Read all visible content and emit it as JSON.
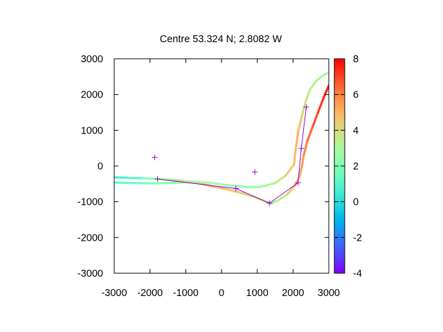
{
  "chart_data": {
    "type": "scatter",
    "title": "Centre 53.324 N; 2.8082  W",
    "xlabel": "",
    "ylabel": "",
    "xlim": [
      -3000,
      3000
    ],
    "ylim": [
      -3000,
      3000
    ],
    "x_ticks": [
      -3000,
      -2000,
      -1000,
      0,
      1000,
      2000,
      3000
    ],
    "y_ticks": [
      -3000,
      -2000,
      -1000,
      0,
      1000,
      2000,
      3000
    ],
    "x_tick_labels": [
      "-3000",
      "-2000",
      "-1000",
      "0",
      "1000",
      "2000",
      "3000"
    ],
    "y_tick_labels": [
      "-3000",
      "-2000",
      "-1000",
      "0",
      "1000",
      "2000",
      "3000"
    ],
    "grid": false,
    "legend": "none",
    "colorbar": {
      "range": [
        -4,
        8
      ],
      "ticks": [
        -4,
        -2,
        0,
        2,
        4,
        6,
        8
      ],
      "tick_labels": [
        "-4",
        "-2",
        "0",
        "2",
        "4",
        "6",
        "8"
      ],
      "palette": "rainbow"
    },
    "series": [
      {
        "kind": "track",
        "color_by_value": true,
        "points": [
          {
            "x": -3000,
            "y": -320,
            "v": 0.5
          },
          {
            "x": -2600,
            "y": -330,
            "v": 0.8
          },
          {
            "x": -2200,
            "y": -345,
            "v": 1.5
          },
          {
            "x": -1800,
            "y": -360,
            "v": 2.5
          },
          {
            "x": -1200,
            "y": -400,
            "v": 3.5
          },
          {
            "x": -700,
            "y": -460,
            "v": 4.8
          },
          {
            "x": -300,
            "y": -560,
            "v": 5.0
          },
          {
            "x": 100,
            "y": -640,
            "v": 4.8
          },
          {
            "x": 500,
            "y": -740,
            "v": 4.5
          },
          {
            "x": 900,
            "y": -860,
            "v": 4.2
          },
          {
            "x": 1200,
            "y": -980,
            "v": 3.8
          },
          {
            "x": 1380,
            "y": -1050,
            "v": 3.0
          },
          {
            "x": 1600,
            "y": -950,
            "v": 3.0
          },
          {
            "x": 1850,
            "y": -780,
            "v": 4.0
          },
          {
            "x": 2050,
            "y": -550,
            "v": 5.0
          },
          {
            "x": 2180,
            "y": -300,
            "v": 5.2
          },
          {
            "x": 2250,
            "y": 0,
            "v": 5.3
          },
          {
            "x": 2300,
            "y": 300,
            "v": 5.6
          },
          {
            "x": 2400,
            "y": 700,
            "v": 6.2
          },
          {
            "x": 2550,
            "y": 1100,
            "v": 6.6
          },
          {
            "x": 2700,
            "y": 1500,
            "v": 7.0
          },
          {
            "x": 2850,
            "y": 1900,
            "v": 7.3
          },
          {
            "x": 3000,
            "y": 2250,
            "v": 7.6
          }
        ]
      },
      {
        "kind": "track",
        "color_by_value": true,
        "points": [
          {
            "x": -3000,
            "y": -460,
            "v": 1.2
          },
          {
            "x": -2600,
            "y": -475,
            "v": 1.4
          },
          {
            "x": -2200,
            "y": -480,
            "v": 1.6
          },
          {
            "x": -1800,
            "y": -485,
            "v": 1.8
          },
          {
            "x": -1300,
            "y": -470,
            "v": 2.5
          },
          {
            "x": -800,
            "y": -440,
            "v": 2.8
          },
          {
            "x": -300,
            "y": -470,
            "v": 2.8
          },
          {
            "x": 200,
            "y": -540,
            "v": 2.6
          },
          {
            "x": 700,
            "y": -590,
            "v": 2.3
          },
          {
            "x": 1100,
            "y": -580,
            "v": 2.5
          },
          {
            "x": 1500,
            "y": -480,
            "v": 3.2
          },
          {
            "x": 1800,
            "y": -260,
            "v": 4.2
          },
          {
            "x": 2030,
            "y": 50,
            "v": 4.6
          },
          {
            "x": 2080,
            "y": 500,
            "v": 5.0
          },
          {
            "x": 2150,
            "y": 1000,
            "v": 5.0
          },
          {
            "x": 2250,
            "y": 1400,
            "v": 4.5
          },
          {
            "x": 2350,
            "y": 1800,
            "v": 3.8
          },
          {
            "x": 2480,
            "y": 2150,
            "v": 3.5
          },
          {
            "x": 2650,
            "y": 2380,
            "v": 3.2
          },
          {
            "x": 2820,
            "y": 2520,
            "v": 3.0
          },
          {
            "x": 3000,
            "y": 2620,
            "v": 2.8
          }
        ]
      },
      {
        "kind": "path",
        "color": "#9400d3",
        "points": [
          {
            "x": -1790,
            "y": -365
          },
          {
            "x": 400,
            "y": -630
          },
          {
            "x": 1340,
            "y": -1040
          },
          {
            "x": 2140,
            "y": -470
          },
          {
            "x": 2230,
            "y": 490
          },
          {
            "x": 2370,
            "y": 1650
          }
        ]
      },
      {
        "kind": "markers",
        "color": "#9400d3",
        "marker": "plus",
        "points": [
          {
            "x": -1870,
            "y": 240
          },
          {
            "x": 930,
            "y": -170
          }
        ]
      }
    ]
  }
}
